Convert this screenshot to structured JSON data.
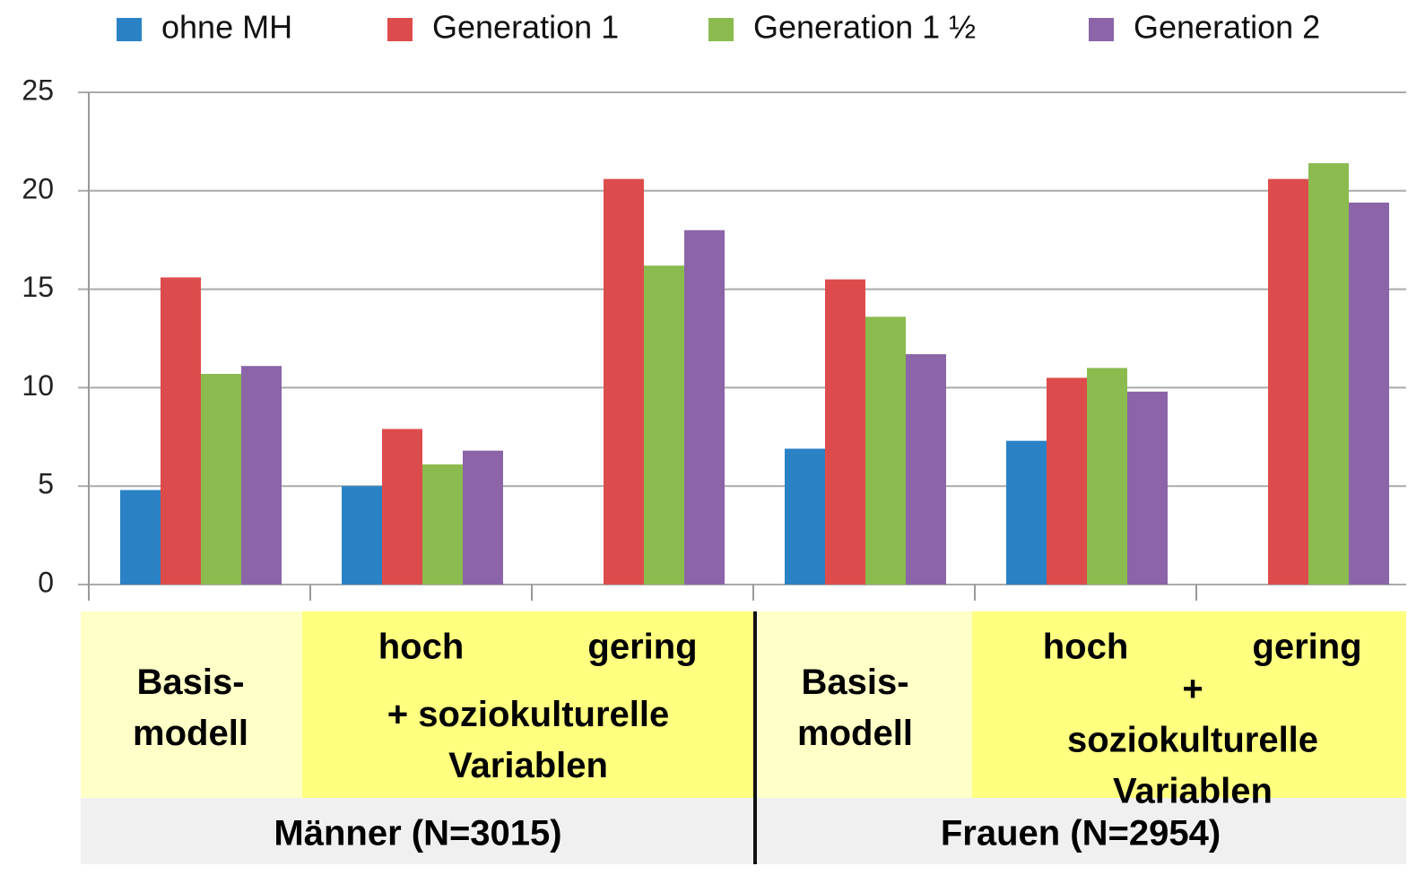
{
  "chart_data": {
    "type": "bar",
    "categories": [
      "Basis-\nmodell",
      "hoch",
      "gering",
      "Basis-\nmodell",
      "hoch",
      "gering"
    ],
    "series": [
      {
        "name": "ohne MH",
        "color": "#2a82c5",
        "values": [
          4.8,
          5.0,
          null,
          6.9,
          7.3,
          null
        ]
      },
      {
        "name": "Generation 1",
        "color": "#dd4c4c",
        "values": [
          15.6,
          7.9,
          20.6,
          15.5,
          10.5,
          20.6
        ]
      },
      {
        "name": "Generation 1 ½",
        "color": "#8bbb4f",
        "values": [
          10.7,
          6.1,
          16.2,
          13.6,
          11.0,
          21.4
        ]
      },
      {
        "name": "Generation 2",
        "color": "#8b65a8",
        "values": [
          11.1,
          6.8,
          18.0,
          11.7,
          9.8,
          19.4
        ]
      }
    ],
    "panels": [
      {
        "label": "Männer (N=3015)",
        "note": "+ soziokulturelle\nVariablen"
      },
      {
        "label": "Frauen (N=2954)",
        "note": "+ soziokulturelle\nVariablen"
      }
    ],
    "ylim": [
      0,
      25
    ],
    "yticks": [
      0,
      5,
      10,
      15,
      20,
      25
    ],
    "grid": true
  }
}
